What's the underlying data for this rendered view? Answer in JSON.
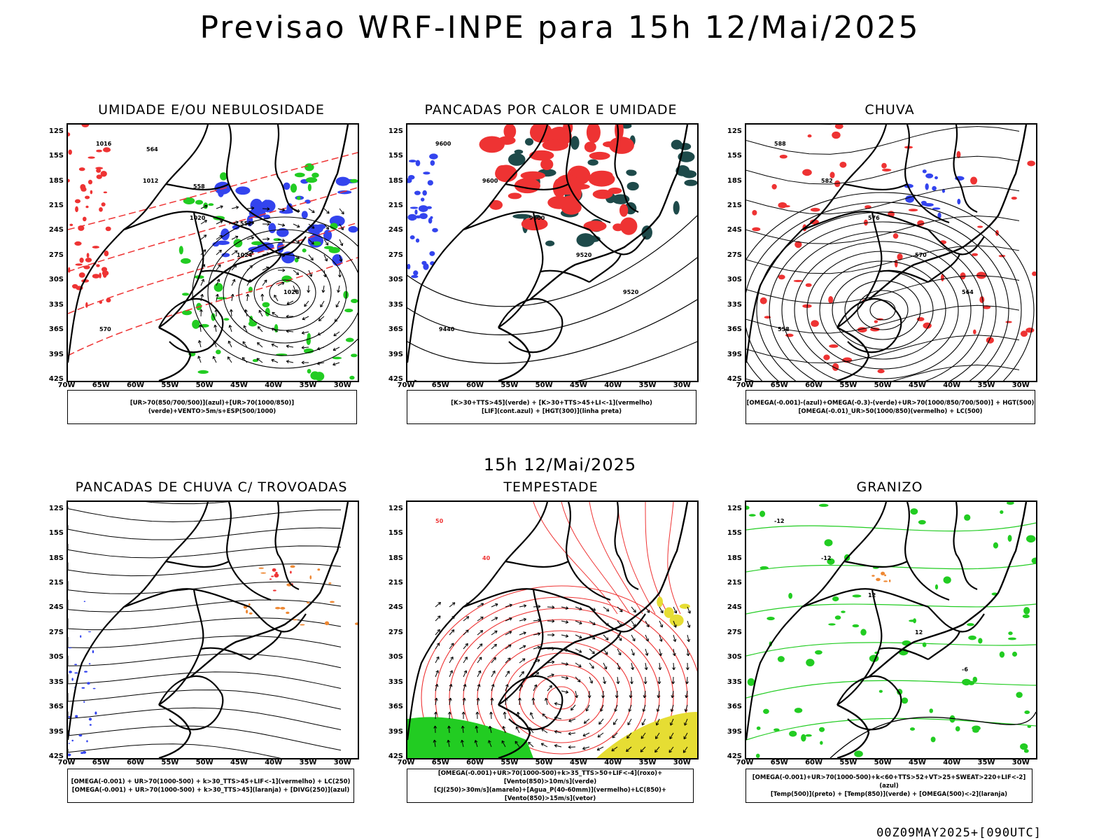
{
  "header": {
    "title": "Previsao WRF-INPE  para 15h 12/Mai/2025",
    "subtitle": "15h 12/Mai/2025",
    "footer": "00Z09MAY2025+[090UTC]"
  },
  "axes": {
    "lat_labels": [
      "12S",
      "15S",
      "18S",
      "21S",
      "24S",
      "27S",
      "30S",
      "33S",
      "36S",
      "39S",
      "42S"
    ],
    "lon_labels": [
      "70W",
      "65W",
      "60W",
      "55W",
      "50W",
      "45W",
      "40W",
      "35W",
      "30W"
    ]
  },
  "colors": {
    "blue": "#3344ee",
    "green": "#22cc22",
    "red": "#ee3333",
    "dark_teal": "#1e4a4a",
    "orange": "#ee8833",
    "yellow": "#e6dd33"
  },
  "panels": [
    {
      "title": "UMIDADE E/OU NEBULOSIDADE",
      "legend": [
        "[UR>70(850/700/500)](azul)+[UR>70(1000/850)](verde)+VENTO>5m/s+ESP(500/1000)"
      ],
      "contour_labels": [
        "1016",
        "1012",
        "1020",
        "1024",
        "1028",
        "570",
        "564",
        "558",
        "552"
      ]
    },
    {
      "title": "PANCADAS POR CALOR E UMIDADE",
      "legend": [
        "[K>30+TTS>45](verde) + [K>30+TTS>45+LI<-1](vermelho)",
        "[LIF](cont.azul) + [HGT(300)](linha preta)"
      ],
      "contour_labels": [
        "9600",
        "9600",
        "9600",
        "9520",
        "9520",
        "9440"
      ]
    },
    {
      "title": "CHUVA",
      "legend": [
        "[OMEGA(-0.001)-(azul)+OMEGA(-0.3)-(verde)+UR>70(1000/850/700/500)] + HGT(500)",
        "[OMEGA(-0.01)_UR>50(1000/850)(vermelho) + LC(500)"
      ],
      "contour_labels": [
        "588",
        "582",
        "576",
        "570",
        "564",
        "558"
      ]
    },
    {
      "title": "PANCADAS DE CHUVA C/ TROVOADAS",
      "legend": [
        "[OMEGA(-0.001) + UR>70(1000-500) + k>30_TTS>45+LIF<-1](vermelho) + LC(250)",
        "[OMEGA(-0.001) + UR>70(1000-500) + k>30_TTS>45](laranja) + [DIVG(250)](azul)"
      ],
      "contour_labels": []
    },
    {
      "title": "TEMPESTADE",
      "legend": [
        "[OMEGA(-0.001)+UR>70(1000-500)+k>35_TTS>50+LIF<-4](roxo)+[Vento(850)>10m/s](verde)",
        "[CJ(250)>30m/s](amarelo)+[Agua_P(40-60mm)](vermelho)+LC(850)+[Vento(850)>15m/s](vetor)"
      ],
      "contour_labels": [
        "50",
        "40"
      ]
    },
    {
      "title": "GRANIZO",
      "legend": [
        "[OMEGA(-0.001)+UR>70(1000-500)+k<60+TTS>52+VT>25+SWEAT>220+LIF<-2](azul)",
        "[Temp(500)](preto) + [Temp(850)](verde) + [OMEGA(500)<-2](laranja)"
      ],
      "contour_labels": [
        "-12",
        "-12",
        "12",
        "12",
        "-6"
      ]
    }
  ]
}
